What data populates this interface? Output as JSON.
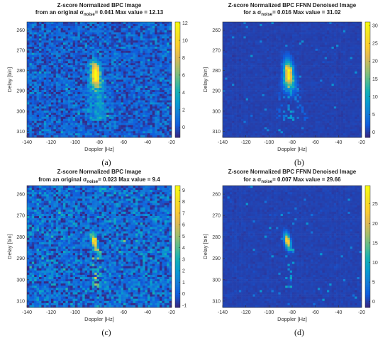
{
  "chart_data": [
    {
      "type": "heatmap",
      "panel_label": "(a)",
      "title_line1": "Z-score Normalized BPC Image",
      "title_line2_pre": "from an original σ",
      "title_sub": "noise",
      "title_line2_post": "= 0.041 Max value = 12.13",
      "xlabel": "Doppler [Hz]",
      "ylabel": "Delay [bin]",
      "xlim": [
        -140,
        -20
      ],
      "ylim": [
        256,
        313
      ],
      "xticks": [
        -140,
        -120,
        -100,
        -80,
        -60,
        -40,
        -20
      ],
      "yticks": [
        260,
        270,
        280,
        290,
        300,
        310
      ],
      "colorbar_ticks": [
        0,
        2,
        4,
        6,
        8,
        10,
        12
      ],
      "clim": [
        -1.2,
        12.13
      ],
      "max_value": 12.13,
      "noise": "high",
      "target": "smear"
    },
    {
      "type": "heatmap",
      "panel_label": "(b)",
      "title_line1": "Z-score Normalized BPC FFNN Denoised Image",
      "title_line2_pre": "for a σ",
      "title_sub": "noise",
      "title_line2_post": "= 0.016 Max value = 31.02",
      "xlabel": "Doppler [Hz]",
      "ylabel": "Delay [bin]",
      "xlim": [
        -140,
        -20
      ],
      "ylim": [
        256,
        313
      ],
      "xticks": [
        -140,
        -120,
        -100,
        -80,
        -60,
        -40,
        -20
      ],
      "yticks": [
        260,
        270,
        280,
        290,
        300,
        310
      ],
      "colorbar_ticks": [
        0,
        5,
        10,
        15,
        20,
        25,
        30
      ],
      "clim": [
        -1.5,
        31.02
      ],
      "max_value": 31.02,
      "noise": "low",
      "target": "smear"
    },
    {
      "type": "heatmap",
      "panel_label": "(c)",
      "title_line1": "Z-score Normalized BPC Image",
      "title_line2_pre": "from an original σ",
      "title_sub": "noise",
      "title_line2_post": "= 0.023 Max value = 9.4",
      "xlabel": "Doppler [Hz]",
      "ylabel": "Delay [bin]",
      "xlim": [
        -140,
        -20
      ],
      "ylim": [
        256,
        313
      ],
      "xticks": [
        -140,
        -120,
        -100,
        -80,
        -60,
        -40,
        -20
      ],
      "yticks": [
        260,
        270,
        280,
        290,
        300,
        310
      ],
      "colorbar_ticks": [
        -1,
        0,
        1,
        2,
        3,
        4,
        5,
        6,
        7,
        8,
        9
      ],
      "clim": [
        -1.2,
        9.4
      ],
      "max_value": 9.4,
      "noise": "high",
      "target": "compact"
    },
    {
      "type": "heatmap",
      "panel_label": "(d)",
      "title_line1": "Z-score Normalized BPC FFNN Denoised Image",
      "title_line2_pre": "for a σ",
      "title_sub": "noise",
      "title_line2_post": "= 0.007 Max value = 29.66",
      "xlabel": "Doppler [Hz]",
      "ylabel": "Delay [bin]",
      "xlim": [
        -140,
        -20
      ],
      "ylim": [
        256,
        313
      ],
      "xticks": [
        -140,
        -120,
        -100,
        -80,
        -60,
        -40,
        -20
      ],
      "yticks": [
        260,
        270,
        280,
        290,
        300,
        310
      ],
      "colorbar_ticks": [
        0,
        5,
        10,
        15,
        20,
        25
      ],
      "clim": [
        -1.5,
        29.66
      ],
      "max_value": 29.66,
      "noise": "low",
      "target": "compact"
    }
  ]
}
